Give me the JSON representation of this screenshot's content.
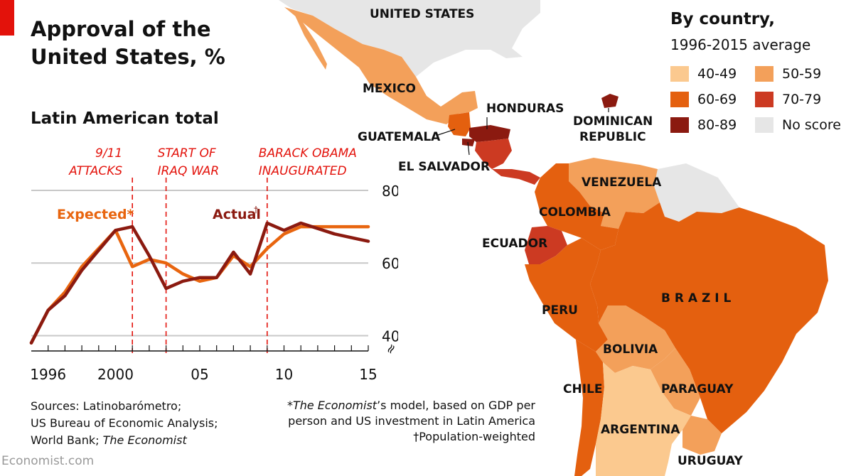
{
  "header": {
    "title_line1": "Approval of the",
    "title_line2": "United States, %",
    "subtitle": "Latin American total"
  },
  "chart_data": {
    "type": "line",
    "title": "Approval of the United States, %",
    "subtitle": "Latin American total",
    "x": [
      1995,
      1996,
      1997,
      1998,
      2000,
      2001,
      2002,
      2003,
      2004,
      2005,
      2006,
      2007,
      2008,
      2009,
      2010,
      2011,
      2013,
      2015
    ],
    "series": [
      {
        "name": "Actual",
        "label": "Actual",
        "dagger": "†",
        "color": "#8b1a10",
        "values": [
          38,
          47,
          51,
          58,
          69,
          70,
          62,
          53,
          55,
          56,
          56,
          63,
          57,
          71,
          69,
          71,
          68,
          66
        ]
      },
      {
        "name": "Expected",
        "label": "Expected*",
        "dagger": "",
        "color": "#e8650f",
        "values": [
          38,
          47,
          52,
          59,
          69,
          59,
          61,
          60,
          57,
          55,
          56,
          62,
          59,
          64,
          68,
          70,
          70,
          70
        ]
      }
    ],
    "ylim": [
      35,
      80
    ],
    "yticks": [
      40,
      60,
      80
    ],
    "xlim": [
      1995,
      2015
    ],
    "xticks": [
      1996,
      1997,
      1998,
      1999,
      2000,
      2001,
      2002,
      2003,
      2004,
      2005,
      2006,
      2007,
      2008,
      2009,
      2010,
      2011,
      2012,
      2013,
      2014,
      2015
    ],
    "xtick_labels": [
      {
        "year": 1996,
        "text": "1996"
      },
      {
        "year": 2000,
        "text": "2000"
      },
      {
        "year": 2005,
        "text": "05"
      },
      {
        "year": 2010,
        "text": "10"
      },
      {
        "year": 2015,
        "text": "15"
      }
    ],
    "annotations": [
      {
        "year": 2001,
        "lines": [
          "9/11",
          "ATTACKS"
        ],
        "align": "end"
      },
      {
        "year": 2003,
        "lines": [
          "START OF",
          "IRAQ WAR"
        ],
        "align": "start"
      },
      {
        "year": 2009,
        "lines": [
          "BARACK OBAMA",
          "INAUGURATED"
        ],
        "align": "start"
      }
    ],
    "axis_break": "≈"
  },
  "legend": {
    "title": "By country,",
    "subtitle": "1996-2015 average",
    "items": [
      {
        "label": "40-49",
        "color": "#fbc98f"
      },
      {
        "label": "50-59",
        "color": "#f3a05a"
      },
      {
        "label": "60-69",
        "color": "#e4600f"
      },
      {
        "label": "70-79",
        "color": "#cc3a22"
      },
      {
        "label": "80-89",
        "color": "#8b1a10"
      },
      {
        "label": "No score",
        "color": "#e6e6e6"
      }
    ]
  },
  "map": {
    "labels": [
      {
        "text": "UNITED STATES"
      },
      {
        "text": "MEXICO"
      },
      {
        "text": "HONDURAS"
      },
      {
        "text": "DOMINICAN"
      },
      {
        "text": "REPUBLIC"
      },
      {
        "text": "GUATEMALA"
      },
      {
        "text": "EL SALVADOR"
      },
      {
        "text": "VENEZUELA"
      },
      {
        "text": "COLOMBIA"
      },
      {
        "text": "ECUADOR"
      },
      {
        "text": "B R A Z I L"
      },
      {
        "text": "PERU"
      },
      {
        "text": "BOLIVIA"
      },
      {
        "text": "CHILE"
      },
      {
        "text": "PARAGUAY"
      },
      {
        "text": "ARGENTINA"
      },
      {
        "text": "URUGUAY"
      }
    ]
  },
  "footer": {
    "sources_line1": "Sources: Latinobarómetro;",
    "sources_line2": "US Bureau of Economic Analysis;",
    "sources_line3a": "World Bank; ",
    "sources_line3b": "The Economist",
    "note_line1a": "*",
    "note_line1b": "The Economist",
    "note_line1c": "’s model, based on GDP per",
    "note_line2": "person and US investment in Latin America",
    "note_line3": "†Population-weighted",
    "watermark": "Economist.com"
  }
}
